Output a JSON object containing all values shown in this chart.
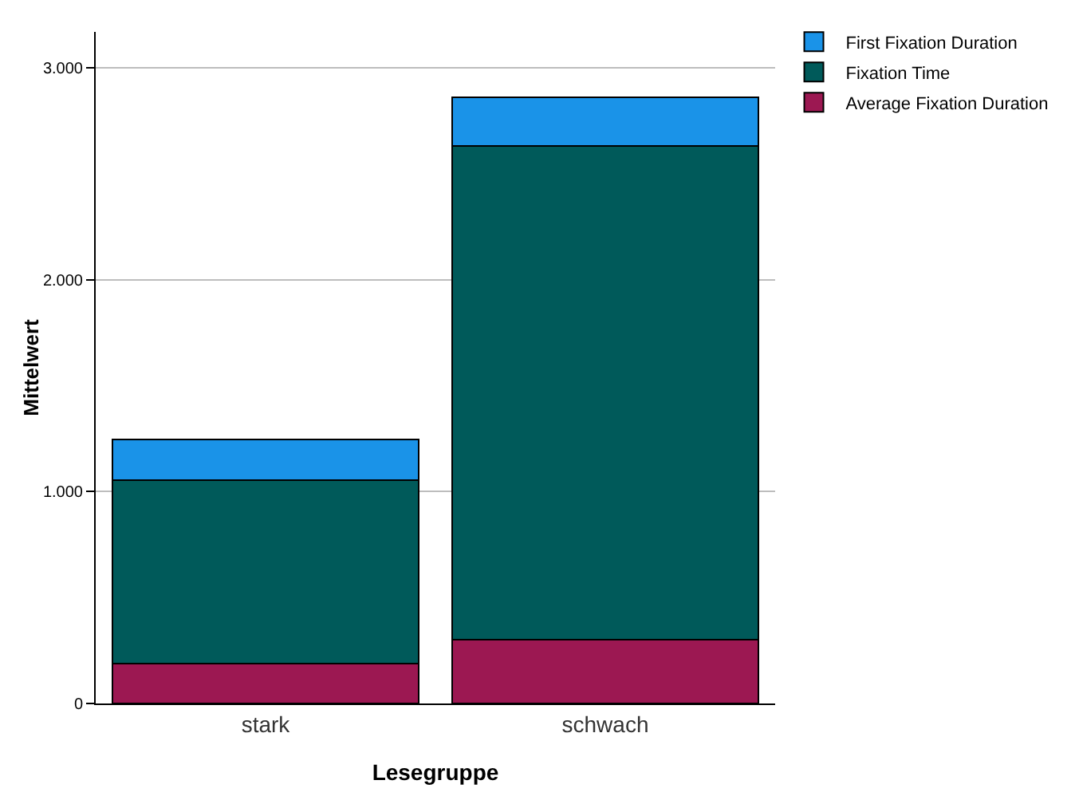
{
  "chart_data": {
    "type": "bar",
    "stacked": true,
    "xlabel": "Lesegruppe",
    "ylabel": "Mittelwert",
    "categories": [
      "stark",
      "schwach"
    ],
    "series": [
      {
        "name": "Average Fixation Duration",
        "color": "#9c1852",
        "values": [
          190,
          300
        ]
      },
      {
        "name": "Fixation Time",
        "color": "#005a5a",
        "values": [
          865,
          2330
        ]
      },
      {
        "name": "First Fixation Duration",
        "color": "#1a93e8",
        "values": [
          190,
          230
        ]
      }
    ],
    "ylim": [
      0,
      3170
    ],
    "yticks": [
      {
        "value": 0,
        "label": "0"
      },
      {
        "value": 1000,
        "label": "1.000"
      },
      {
        "value": 2000,
        "label": "2.000"
      },
      {
        "value": 3000,
        "label": "3.000"
      }
    ],
    "grid": "y",
    "legend": "top right"
  }
}
